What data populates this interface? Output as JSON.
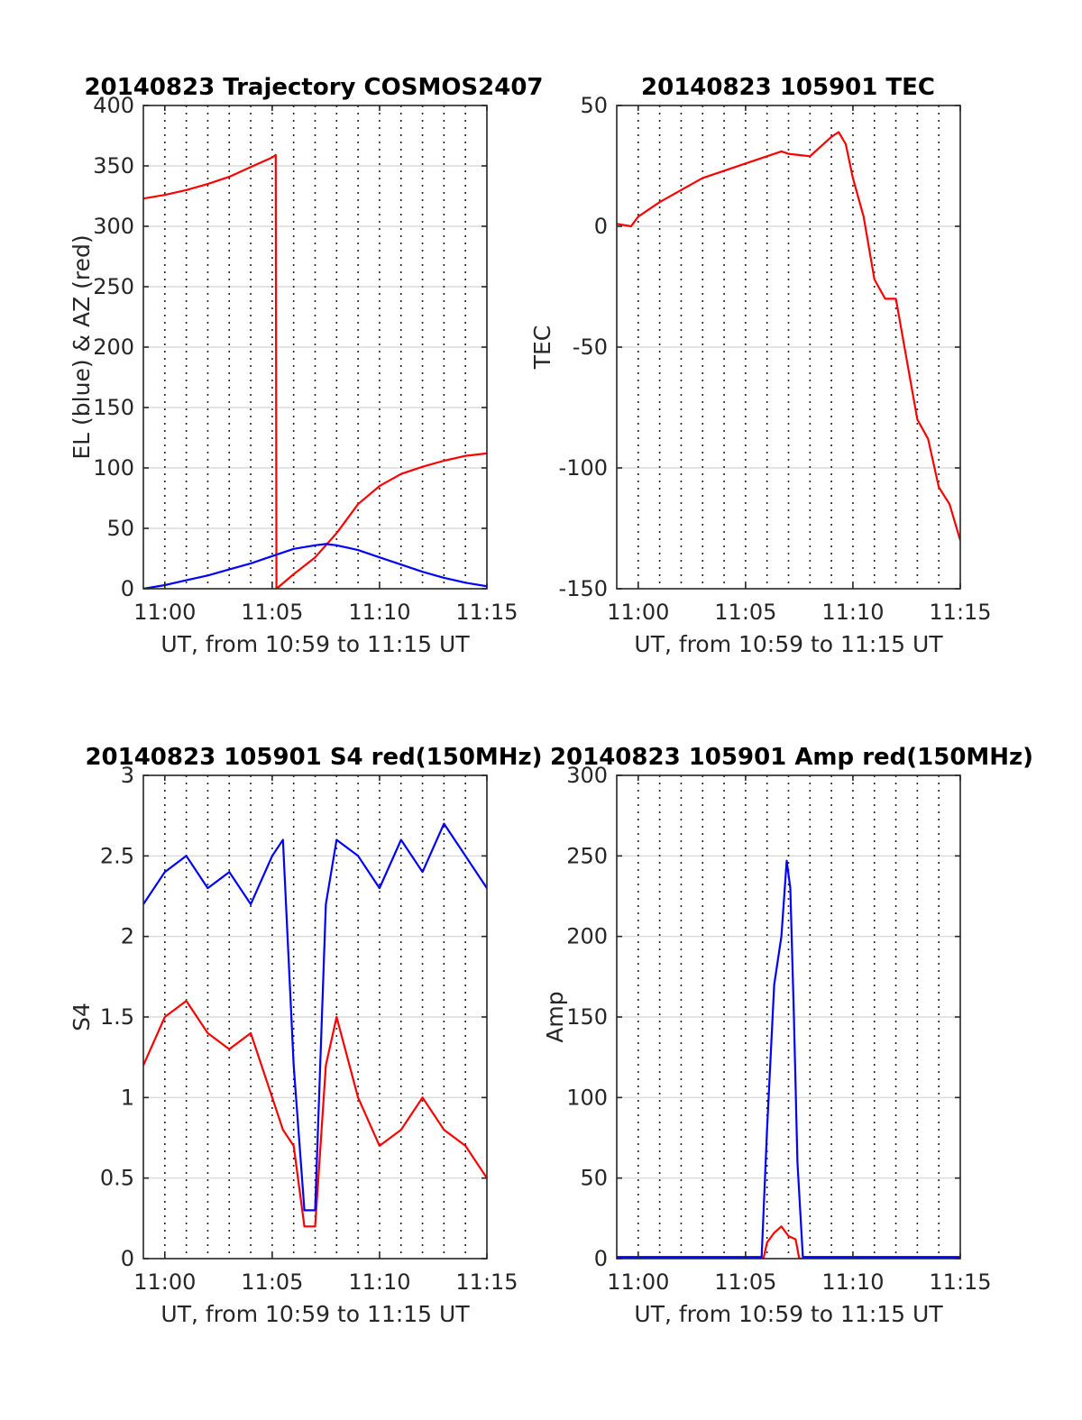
{
  "chart_data": [
    {
      "type": "line",
      "title": "20140823 Trajectory COSMOS2407",
      "xlabel": "UT, from 10:59 to 11:15 UT",
      "ylabel": "EL (blue) & AZ (red)",
      "xlim": [
        "10:59",
        "11:15"
      ],
      "ylim": [
        0,
        400
      ],
      "xticks": [
        "11:00",
        "11:05",
        "11:10",
        "11:15"
      ],
      "yticks": [
        "0",
        "50",
        "100",
        "150",
        "200",
        "250",
        "300",
        "350",
        "400"
      ],
      "grid": true,
      "series": [
        {
          "color": "#ff0000",
          "x": [
            "10:59",
            "11:00",
            "11:01",
            "11:02",
            "11:03",
            "11:04",
            "11:05",
            "11:05:10",
            "11:05:12",
            "11:06",
            "11:07",
            "11:08",
            "11:09",
            "11:10",
            "11:11",
            "11:12",
            "11:13",
            "11:14",
            "11:15"
          ],
          "values": [
            323,
            326,
            330,
            335,
            341,
            349,
            357,
            359,
            0,
            12,
            26,
            46,
            70,
            85,
            95,
            101,
            106,
            110,
            112
          ]
        },
        {
          "color": "#0000ff",
          "x": [
            "10:59",
            "11:00",
            "11:01",
            "11:02",
            "11:03",
            "11:04",
            "11:05",
            "11:06",
            "11:07",
            "11:07:30",
            "11:08",
            "11:09",
            "11:10",
            "11:11",
            "11:12",
            "11:13",
            "11:14",
            "11:15"
          ],
          "values": [
            0,
            3,
            7,
            11,
            16,
            21,
            27,
            33,
            36,
            37,
            36,
            32,
            26,
            20,
            14,
            9,
            5,
            2
          ]
        }
      ]
    },
    {
      "type": "line",
      "title": "20140823 105901 TEC",
      "xlabel": "UT, from 10:59 to 11:15 UT",
      "ylabel": "TEC",
      "xlim": [
        "10:59",
        "11:15"
      ],
      "ylim": [
        -150,
        50
      ],
      "xticks": [
        "11:00",
        "11:05",
        "11:10",
        "11:15"
      ],
      "yticks": [
        "-150",
        "-100",
        "-50",
        "0",
        "50"
      ],
      "grid": true,
      "series": [
        {
          "color": "#ff0000",
          "x": [
            "10:59",
            "10:59:40",
            "11:00",
            "11:01",
            "11:02",
            "11:03",
            "11:04",
            "11:05",
            "11:06",
            "11:06:40",
            "11:07",
            "11:08",
            "11:08:30",
            "11:09",
            "11:09:20",
            "11:09:40",
            "11:10",
            "11:10:30",
            "11:11",
            "11:11:30",
            "11:12",
            "11:12:30",
            "11:13",
            "11:13:30",
            "11:14",
            "11:14:30",
            "11:15"
          ],
          "values": [
            1,
            0,
            4,
            10,
            15,
            20,
            23,
            26,
            29,
            31,
            30,
            29,
            33,
            37,
            39,
            34,
            20,
            4,
            -22,
            -30,
            -30,
            -55,
            -80,
            -88,
            -108,
            -115,
            -130
          ]
        }
      ]
    },
    {
      "type": "line",
      "title": "20140823 105901 S4 red(150MHz)",
      "xlabel": "UT, from 10:59 to 11:15 UT",
      "ylabel": "S4",
      "xlim": [
        "10:59",
        "11:15"
      ],
      "ylim": [
        0,
        3
      ],
      "xticks": [
        "11:00",
        "11:05",
        "11:10",
        "11:15"
      ],
      "yticks": [
        "0",
        "0.5",
        "1",
        "1.5",
        "2",
        "2.5",
        "3"
      ],
      "grid": true,
      "series": [
        {
          "color": "#ff0000",
          "x": [
            "10:59",
            "11:00",
            "11:01",
            "11:02",
            "11:03",
            "11:04",
            "11:05",
            "11:05:30",
            "11:06",
            "11:06:30",
            "11:07",
            "11:07:30",
            "11:08",
            "11:09",
            "11:10",
            "11:11",
            "11:12",
            "11:13",
            "11:14",
            "11:15"
          ],
          "values": [
            1.2,
            1.5,
            1.6,
            1.4,
            1.3,
            1.4,
            1.0,
            0.8,
            0.7,
            0.2,
            0.2,
            1.2,
            1.5,
            1.0,
            0.7,
            0.8,
            1.0,
            0.8,
            0.7,
            0.5
          ]
        },
        {
          "color": "#0000ff",
          "x": [
            "10:59",
            "11:00",
            "11:01",
            "11:02",
            "11:03",
            "11:04",
            "11:05",
            "11:05:30",
            "11:06",
            "11:06:30",
            "11:07",
            "11:07:30",
            "11:08",
            "11:09",
            "11:10",
            "11:11",
            "11:12",
            "11:13",
            "11:14",
            "11:15"
          ],
          "values": [
            2.2,
            2.4,
            2.5,
            2.3,
            2.4,
            2.2,
            2.5,
            2.6,
            1.2,
            0.3,
            0.3,
            2.2,
            2.6,
            2.5,
            2.3,
            2.6,
            2.4,
            2.7,
            2.5,
            2.3
          ]
        }
      ]
    },
    {
      "type": "line",
      "title": "20140823 105901 Amp red(150MHz)",
      "xlabel": "UT, from 10:59 to 11:15 UT",
      "ylabel": "Amp",
      "xlim": [
        "10:59",
        "11:15"
      ],
      "ylim": [
        0,
        300
      ],
      "xticks": [
        "11:00",
        "11:05",
        "11:10",
        "11:15"
      ],
      "yticks": [
        "0",
        "50",
        "100",
        "150",
        "200",
        "250",
        "300"
      ],
      "grid": true,
      "series": [
        {
          "color": "#ff0000",
          "x": [
            "10:59",
            "11:05:50",
            "11:06:00",
            "11:06:20",
            "11:06:40",
            "11:07:00",
            "11:07:20",
            "11:07:30",
            "11:15"
          ],
          "values": [
            0,
            0,
            10,
            16,
            20,
            14,
            12,
            0,
            0
          ]
        },
        {
          "color": "#0000ff",
          "x": [
            "10:59",
            "11:05:45",
            "11:06:00",
            "11:06:20",
            "11:06:40",
            "11:06:55",
            "11:07:05",
            "11:07:15",
            "11:07:25",
            "11:07:40",
            "11:15"
          ],
          "values": [
            1,
            1,
            80,
            170,
            200,
            247,
            230,
            150,
            60,
            1,
            1
          ]
        }
      ]
    }
  ]
}
